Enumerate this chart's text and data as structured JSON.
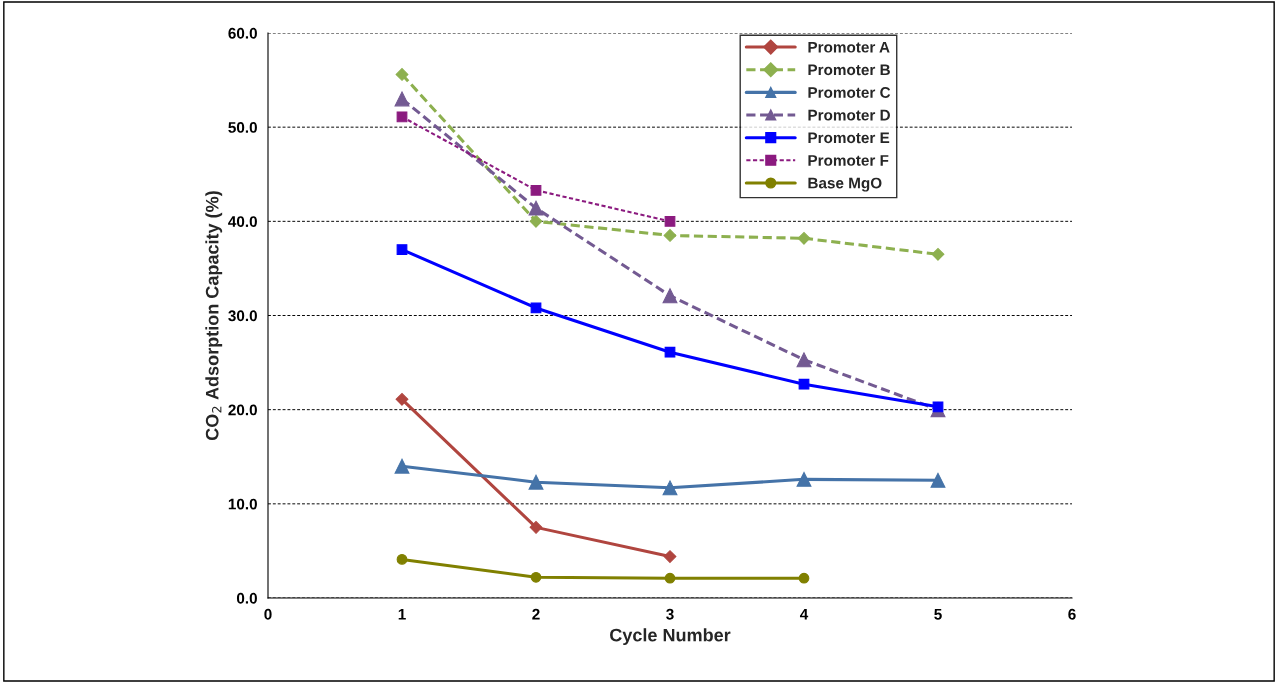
{
  "chart_data": {
    "type": "line",
    "xlabel": "Cycle Number",
    "ylabel": "CO$_{2}$ Adsorption Capacity (%)",
    "x": [
      1,
      2,
      3,
      4,
      5
    ],
    "xlim": [
      0,
      6
    ],
    "xticks": [
      0,
      1,
      2,
      3,
      4,
      5,
      6
    ],
    "ylim": [
      0,
      60
    ],
    "yticks": [
      {
        "value": 0,
        "label": "0.0"
      },
      {
        "value": 10,
        "label": "10.0"
      },
      {
        "value": 20,
        "label": "20.0"
      },
      {
        "value": 30,
        "label": "30.0"
      },
      {
        "value": 40,
        "label": "40.0"
      },
      {
        "value": 50,
        "label": "50.0"
      },
      {
        "value": 60,
        "label": "60.0"
      }
    ],
    "grid": "y",
    "legend": "top right",
    "series": [
      {
        "name": "Promoter A",
        "color": "#b0453f",
        "marker": "diamond",
        "line_style": "solid",
        "values": [
          21.1,
          7.5,
          4.4,
          null,
          null
        ]
      },
      {
        "name": "Promoter B",
        "color": "#8db04f",
        "marker": "diamond",
        "line_style": "dashed",
        "values": [
          55.6,
          40.0,
          38.5,
          38.2,
          36.5
        ]
      },
      {
        "name": "Promoter C",
        "color": "#4573a8",
        "marker": "triangle",
        "line_style": "solid",
        "values": [
          14.0,
          12.3,
          11.7,
          12.6,
          12.5
        ]
      },
      {
        "name": "Promoter D",
        "color": "#735a92",
        "marker": "triangle",
        "line_style": "dashed",
        "values": [
          53.0,
          41.4,
          32.1,
          25.3,
          20.0
        ]
      },
      {
        "name": "Promoter E",
        "color": "#0000ff",
        "marker": "square",
        "line_style": "solid",
        "values": [
          37.0,
          30.8,
          26.1,
          22.7,
          20.3
        ]
      },
      {
        "name": "Promoter F",
        "color": "#8b1a7f",
        "marker": "square",
        "line_style": "dotted",
        "values": [
          51.1,
          43.3,
          40.0,
          null,
          null
        ]
      },
      {
        "name": "Base MgO",
        "color": "#808000",
        "marker": "circle",
        "line_style": "solid",
        "values": [
          4.1,
          2.2,
          2.1,
          2.1,
          null
        ]
      }
    ]
  }
}
